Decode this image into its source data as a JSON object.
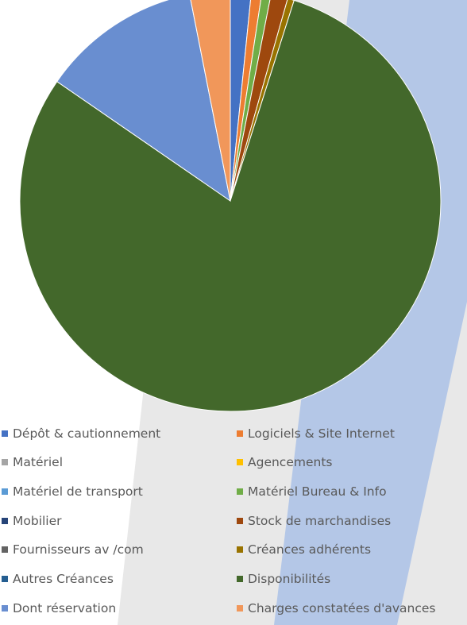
{
  "chart_data": {
    "type": "pie",
    "title": "",
    "legend_position": "bottom",
    "series": [
      {
        "name": "Dépôt & cautionnement",
        "value": 1.6,
        "color": "#4472C4"
      },
      {
        "name": "Logiciels & Site Internet",
        "value": 0.8,
        "color": "#ED7D31"
      },
      {
        "name": "Matériel",
        "value": 0.0,
        "color": "#A5A5A5"
      },
      {
        "name": "Agencements",
        "value": 0.0,
        "color": "#FFC000"
      },
      {
        "name": "Matériel de transport",
        "value": 0.0,
        "color": "#5B9BD5"
      },
      {
        "name": "Matériel Bureau & Info",
        "value": 0.7,
        "color": "#70AD47"
      },
      {
        "name": "Mobilier",
        "value": 0.0,
        "color": "#264478"
      },
      {
        "name": "Stock de marchandises",
        "value": 1.3,
        "color": "#9E480E"
      },
      {
        "name": "Fournisseurs av /com",
        "value": 0.0,
        "color": "#636363"
      },
      {
        "name": "Créances adhérents",
        "value": 0.5,
        "color": "#997300"
      },
      {
        "name": "Autres Créances",
        "value": 0.0,
        "color": "#255E91"
      },
      {
        "name": "Disponibilités",
        "value": 79.7,
        "color": "#43682B"
      },
      {
        "name": "Dont réservation",
        "value": 12.3,
        "color": "#698ED0"
      },
      {
        "name": "Charges constatées d'avances",
        "value": 3.1,
        "color": "#F1975A"
      }
    ]
  }
}
